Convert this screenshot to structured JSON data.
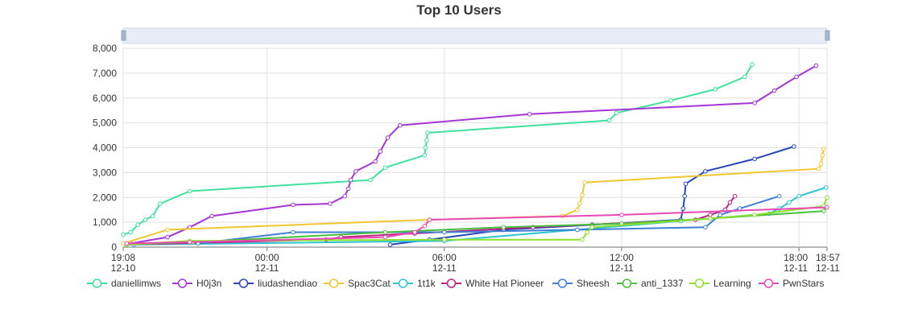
{
  "chart_data": {
    "type": "line",
    "title": "Top 10 Users",
    "x_axis": {
      "type": "time",
      "range": [
        "2024-12-10 19:08",
        "2024-12-11 18:57"
      ],
      "ticks": [
        {
          "t": "2024-12-10 19:08",
          "label1": "19:08",
          "label2": "12-10"
        },
        {
          "t": "2024-12-11 00:00",
          "label1": "00:00",
          "label2": "12-11"
        },
        {
          "t": "2024-12-11 06:00",
          "label1": "06:00",
          "label2": "12-11"
        },
        {
          "t": "2024-12-11 12:00",
          "label1": "12:00",
          "label2": "12-11"
        },
        {
          "t": "2024-12-11 18:00",
          "label1": "18:00",
          "label2": "12-11"
        },
        {
          "t": "2024-12-11 18:57",
          "label1": "18:57",
          "label2": "12-11"
        }
      ]
    },
    "y_axis": {
      "range": [
        0,
        8000
      ],
      "ticks": [
        {
          "v": 0,
          "label": "0"
        },
        {
          "v": 1000,
          "label": "1,000"
        },
        {
          "v": 2000,
          "label": "2,000"
        },
        {
          "v": 3000,
          "label": "3,000"
        },
        {
          "v": 4000,
          "label": "4,000"
        },
        {
          "v": 5000,
          "label": "5,000"
        },
        {
          "v": 6000,
          "label": "6,000"
        },
        {
          "v": 7000,
          "label": "7,000"
        },
        {
          "v": 8000,
          "label": "8,000"
        }
      ]
    },
    "grid": true,
    "legend_position": "bottom",
    "dataZoom_slider": true,
    "series": [
      {
        "name": "daniellimws",
        "color": "#3ee29a",
        "points": [
          [
            "2024-12-10 19:08",
            500
          ],
          [
            "2024-12-10 19:23",
            600
          ],
          [
            "2024-12-10 19:38",
            900
          ],
          [
            "2024-12-10 19:53",
            1100
          ],
          [
            "2024-12-10 20:08",
            1250
          ],
          [
            "2024-12-10 20:23",
            1750
          ],
          [
            "2024-12-10 21:23",
            2250
          ],
          [
            "2024-12-11 03:30",
            2700
          ],
          [
            "2024-12-11 04:00",
            3200
          ],
          [
            "2024-12-11 05:20",
            3700
          ],
          [
            "2024-12-11 05:22",
            4000
          ],
          [
            "2024-12-11 05:24",
            4300
          ],
          [
            "2024-12-11 05:26",
            4600
          ],
          [
            "2024-12-11 11:35",
            5100
          ],
          [
            "2024-12-11 11:50",
            5400
          ],
          [
            "2024-12-11 13:40",
            5900
          ],
          [
            "2024-12-11 15:10",
            6350
          ],
          [
            "2024-12-11 16:10",
            6850
          ],
          [
            "2024-12-11 16:25",
            7350
          ]
        ]
      },
      {
        "name": "H0j3n",
        "color": "#a435d6",
        "points": [
          [
            "2024-12-10 19:23",
            150
          ],
          [
            "2024-12-10 20:38",
            400
          ],
          [
            "2024-12-10 21:23",
            800
          ],
          [
            "2024-12-10 22:08",
            1250
          ],
          [
            "2024-12-11 00:53",
            1700
          ],
          [
            "2024-12-11 02:08",
            1750
          ],
          [
            "2024-12-11 02:38",
            2050
          ],
          [
            "2024-12-11 02:45",
            2350
          ],
          [
            "2024-12-11 02:50",
            2700
          ],
          [
            "2024-12-11 03:00",
            3050
          ],
          [
            "2024-12-11 03:40",
            3450
          ],
          [
            "2024-12-11 03:50",
            3850
          ],
          [
            "2024-12-11 04:05",
            4400
          ],
          [
            "2024-12-11 04:30",
            4900
          ],
          [
            "2024-12-11 08:53",
            5350
          ],
          [
            "2024-12-11 16:30",
            5800
          ],
          [
            "2024-12-11 17:10",
            6300
          ],
          [
            "2024-12-11 17:55",
            6850
          ],
          [
            "2024-12-11 18:35",
            7300
          ]
        ]
      },
      {
        "name": "liudashendiao",
        "color": "#2546b8",
        "points": [
          [
            "2024-12-11 04:10",
            100
          ],
          [
            "2024-12-11 05:30",
            300
          ],
          [
            "2024-12-11 08:00",
            700
          ],
          [
            "2024-12-11 11:00",
            900
          ],
          [
            "2024-12-11 14:00",
            1100
          ],
          [
            "2024-12-11 14:05",
            1550
          ],
          [
            "2024-12-11 14:08",
            2050
          ],
          [
            "2024-12-11 14:10",
            2550
          ],
          [
            "2024-12-11 14:50",
            3050
          ],
          [
            "2024-12-11 16:30",
            3550
          ],
          [
            "2024-12-11 17:50",
            4050
          ]
        ]
      },
      {
        "name": "Spac3Cat",
        "color": "#f0c730",
        "points": [
          [
            "2024-12-10 19:08",
            150
          ],
          [
            "2024-12-10 20:38",
            700
          ],
          [
            "2024-12-11 05:30",
            1100
          ],
          [
            "2024-12-11 10:00",
            1250
          ],
          [
            "2024-12-11 10:30",
            1500
          ],
          [
            "2024-12-11 10:35",
            1750
          ],
          [
            "2024-12-11 10:40",
            2100
          ],
          [
            "2024-12-11 10:45",
            2600
          ],
          [
            "2024-12-11 18:40",
            3150
          ],
          [
            "2024-12-11 18:45",
            3350
          ],
          [
            "2024-12-11 18:48",
            3700
          ],
          [
            "2024-12-11 18:50",
            3950
          ]
        ]
      },
      {
        "name": "1t1k",
        "color": "#2dc4cf",
        "points": [
          [
            "2024-12-10 19:30",
            100
          ],
          [
            "2024-12-11 06:00",
            250
          ],
          [
            "2024-12-11 10:30",
            700
          ],
          [
            "2024-12-11 14:00",
            1050
          ],
          [
            "2024-12-11 17:00",
            1350
          ],
          [
            "2024-12-11 17:20",
            1550
          ],
          [
            "2024-12-11 17:40",
            1800
          ],
          [
            "2024-12-11 18:00",
            2050
          ],
          [
            "2024-12-11 18:55",
            2400
          ]
        ]
      },
      {
        "name": "White Hat Pioneer",
        "color": "#c21e84",
        "points": [
          [
            "2024-12-10 19:15",
            100
          ],
          [
            "2024-12-11 02:00",
            300
          ],
          [
            "2024-12-11 02:30",
            400
          ],
          [
            "2024-12-11 05:00",
            550
          ],
          [
            "2024-12-11 09:00",
            800
          ],
          [
            "2024-12-11 14:30",
            1100
          ],
          [
            "2024-12-11 15:00",
            1300
          ],
          [
            "2024-12-11 15:30",
            1500
          ],
          [
            "2024-12-11 15:40",
            1800
          ],
          [
            "2024-12-11 15:50",
            2050
          ]
        ]
      },
      {
        "name": "Sheesh",
        "color": "#3f7fd6",
        "points": [
          [
            "2024-12-10 21:40",
            150
          ],
          [
            "2024-12-11 00:53",
            600
          ],
          [
            "2024-12-11 06:00",
            600
          ],
          [
            "2024-12-11 10:30",
            700
          ],
          [
            "2024-12-11 14:50",
            800
          ],
          [
            "2024-12-11 15:20",
            1300
          ],
          [
            "2024-12-11 16:00",
            1550
          ],
          [
            "2024-12-11 17:20",
            2050
          ]
        ]
      },
      {
        "name": "anti_1337",
        "color": "#47bf3a",
        "points": [
          [
            "2024-12-10 19:15",
            100
          ],
          [
            "2024-12-10 21:30",
            200
          ],
          [
            "2024-12-11 04:00",
            600
          ],
          [
            "2024-12-11 08:00",
            800
          ],
          [
            "2024-12-11 12:00",
            950
          ],
          [
            "2024-12-11 15:00",
            1150
          ],
          [
            "2024-12-11 18:50",
            1450
          ],
          [
            "2024-12-11 18:55",
            1600
          ]
        ]
      },
      {
        "name": "Learning",
        "color": "#90e02f",
        "points": [
          [
            "2024-12-10 19:15",
            100
          ],
          [
            "2024-12-10 21:23",
            250
          ],
          [
            "2024-12-11 06:00",
            300
          ],
          [
            "2024-12-11 10:40",
            300
          ],
          [
            "2024-12-11 10:50",
            600
          ],
          [
            "2024-12-11 11:00",
            800
          ],
          [
            "2024-12-11 15:00",
            1150
          ],
          [
            "2024-12-11 16:30",
            1300
          ],
          [
            "2024-12-11 18:50",
            1650
          ],
          [
            "2024-12-11 18:57",
            2000
          ]
        ]
      },
      {
        "name": "PwnStars",
        "color": "#e84ab5",
        "points": [
          [
            "2024-12-10 19:15",
            150
          ],
          [
            "2024-12-10 21:23",
            200
          ],
          [
            "2024-12-11 04:00",
            400
          ],
          [
            "2024-12-11 05:00",
            600
          ],
          [
            "2024-12-11 05:20",
            850
          ],
          [
            "2024-12-11 05:30",
            1100
          ],
          [
            "2024-12-11 12:00",
            1300
          ],
          [
            "2024-12-11 18:57",
            1600
          ]
        ]
      }
    ]
  }
}
